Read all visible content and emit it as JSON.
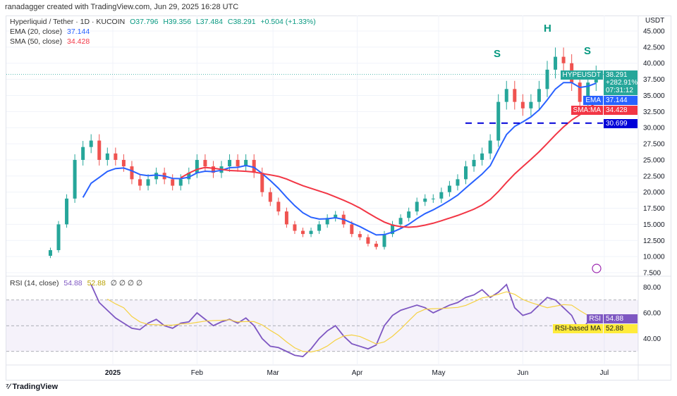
{
  "credit": "ranadagger created with TradingView.com, Jun 29, 2025 16:28 UTC",
  "legend": {
    "symbol": "Hyperliquid / Tether · 1D · KUCOIN",
    "o": "O37.796",
    "h": "H39.356",
    "l": "L37.484",
    "c": "C38.291",
    "chg": "+0.504 (+1.33%)",
    "ema_label": "EMA (20, close)",
    "ema_val": "37.144",
    "sma_label": "SMA (50, close)",
    "sma_val": "34.428",
    "rsi_label": "RSI (14, close)",
    "rsi_val": "54.88",
    "rsi_ma_val": "52.88",
    "rsi_extra": "∅ ∅ ∅ ∅"
  },
  "axis": {
    "currency": "USDT",
    "price_ticks": [
      "45.000",
      "42.500",
      "40.000",
      "37.500",
      "35.000",
      "32.500",
      "30.000",
      "27.500",
      "25.000",
      "22.500",
      "20.000",
      "17.500",
      "15.000",
      "12.500",
      "10.000",
      "7.500"
    ],
    "rsi_ticks": [
      "80.00",
      "60.00",
      "40.00"
    ],
    "time_ticks": [
      "2025",
      "Feb",
      "Mar",
      "Apr",
      "May",
      "Jun",
      "Jul"
    ]
  },
  "tags": {
    "symbol": "HYPEUSDT",
    "price": "38.291",
    "pct": "+282.91%",
    "countdown": "07:31:12",
    "ema": "EMA",
    "ema_val": "37.144",
    "sma": "SMA:MA",
    "sma_val": "34.428",
    "support": "30.699",
    "rsi": "RSI",
    "rsi_val": "54.88",
    "rsi_ma": "RSI-based MA",
    "rsi_ma_val": "52.88"
  },
  "annotations": {
    "left_shoulder": "S",
    "head": "H",
    "right_shoulder": "S"
  },
  "footer": "TradingView",
  "colors": {
    "up": "#26a69a",
    "down": "#ef5350",
    "ema": "#2962ff",
    "sma": "#f23645",
    "rsi": "#7e57c2",
    "rsi_ma": "#f5d142",
    "support": "#0000d8"
  },
  "chart_data": {
    "type": "candlestick",
    "price_range": [
      7.5,
      45
    ],
    "rsi_range": [
      20,
      90
    ],
    "rsi_bands": [
      30,
      70
    ],
    "support_level": 30.699,
    "dates": [
      "2024-12-09",
      "2024-12-12",
      "2024-12-15",
      "2024-12-18",
      "2024-12-21",
      "2024-12-24",
      "2024-12-27",
      "2024-12-30",
      "2025-01-02",
      "2025-01-05",
      "2025-01-08",
      "2025-01-11",
      "2025-01-14",
      "2025-01-17",
      "2025-01-20",
      "2025-01-23",
      "2025-01-26",
      "2025-01-29",
      "2025-02-01",
      "2025-02-04",
      "2025-02-07",
      "2025-02-10",
      "2025-02-13",
      "2025-02-16",
      "2025-02-19",
      "2025-02-22",
      "2025-02-25",
      "2025-02-28",
      "2025-03-03",
      "2025-03-06",
      "2025-03-09",
      "2025-03-12",
      "2025-03-15",
      "2025-03-18",
      "2025-03-21",
      "2025-03-24",
      "2025-03-27",
      "2025-03-30",
      "2025-04-02",
      "2025-04-05",
      "2025-04-08",
      "2025-04-11",
      "2025-04-14",
      "2025-04-17",
      "2025-04-20",
      "2025-04-23",
      "2025-04-26",
      "2025-04-29",
      "2025-05-02",
      "2025-05-05",
      "2025-05-08",
      "2025-05-11",
      "2025-05-14",
      "2025-05-17",
      "2025-05-20",
      "2025-05-23",
      "2025-05-26",
      "2025-05-29",
      "2025-06-01",
      "2025-06-04",
      "2025-06-07",
      "2025-06-10",
      "2025-06-13",
      "2025-06-16",
      "2025-06-19",
      "2025-06-22",
      "2025-06-25",
      "2025-06-28"
    ],
    "close": [
      11,
      15,
      19,
      25,
      27,
      28,
      25,
      26,
      25,
      24,
      22,
      21,
      22,
      23,
      22,
      21,
      22,
      23,
      25,
      24,
      23,
      24,
      25,
      24,
      25,
      23,
      20,
      18.5,
      17,
      15,
      14,
      13.5,
      14,
      15,
      16,
      16.5,
      15,
      13.5,
      13,
      12,
      11.5,
      13.5,
      15,
      16,
      17,
      18.5,
      19,
      19,
      20,
      21,
      22,
      24,
      25,
      26,
      28,
      34,
      36,
      34,
      33,
      34,
      36,
      39,
      41,
      40,
      37,
      34,
      37,
      38.291
    ],
    "rsi": [
      null,
      null,
      null,
      null,
      null,
      82,
      68,
      62,
      56,
      52,
      48,
      47,
      52,
      55,
      50,
      48,
      52,
      53,
      60,
      55,
      50,
      53,
      55,
      52,
      56,
      50,
      40,
      34,
      33,
      30,
      27,
      26,
      32,
      40,
      46,
      50,
      42,
      36,
      34,
      32,
      35,
      50,
      58,
      62,
      64,
      66,
      64,
      60,
      63,
      66,
      68,
      72,
      74,
      78,
      72,
      76,
      82,
      64,
      58,
      60,
      66,
      72,
      70,
      64,
      58,
      45,
      53,
      54.88
    ],
    "ema_last": 37.144,
    "sma_last": 34.428,
    "rsi_ma_last": 52.88
  }
}
